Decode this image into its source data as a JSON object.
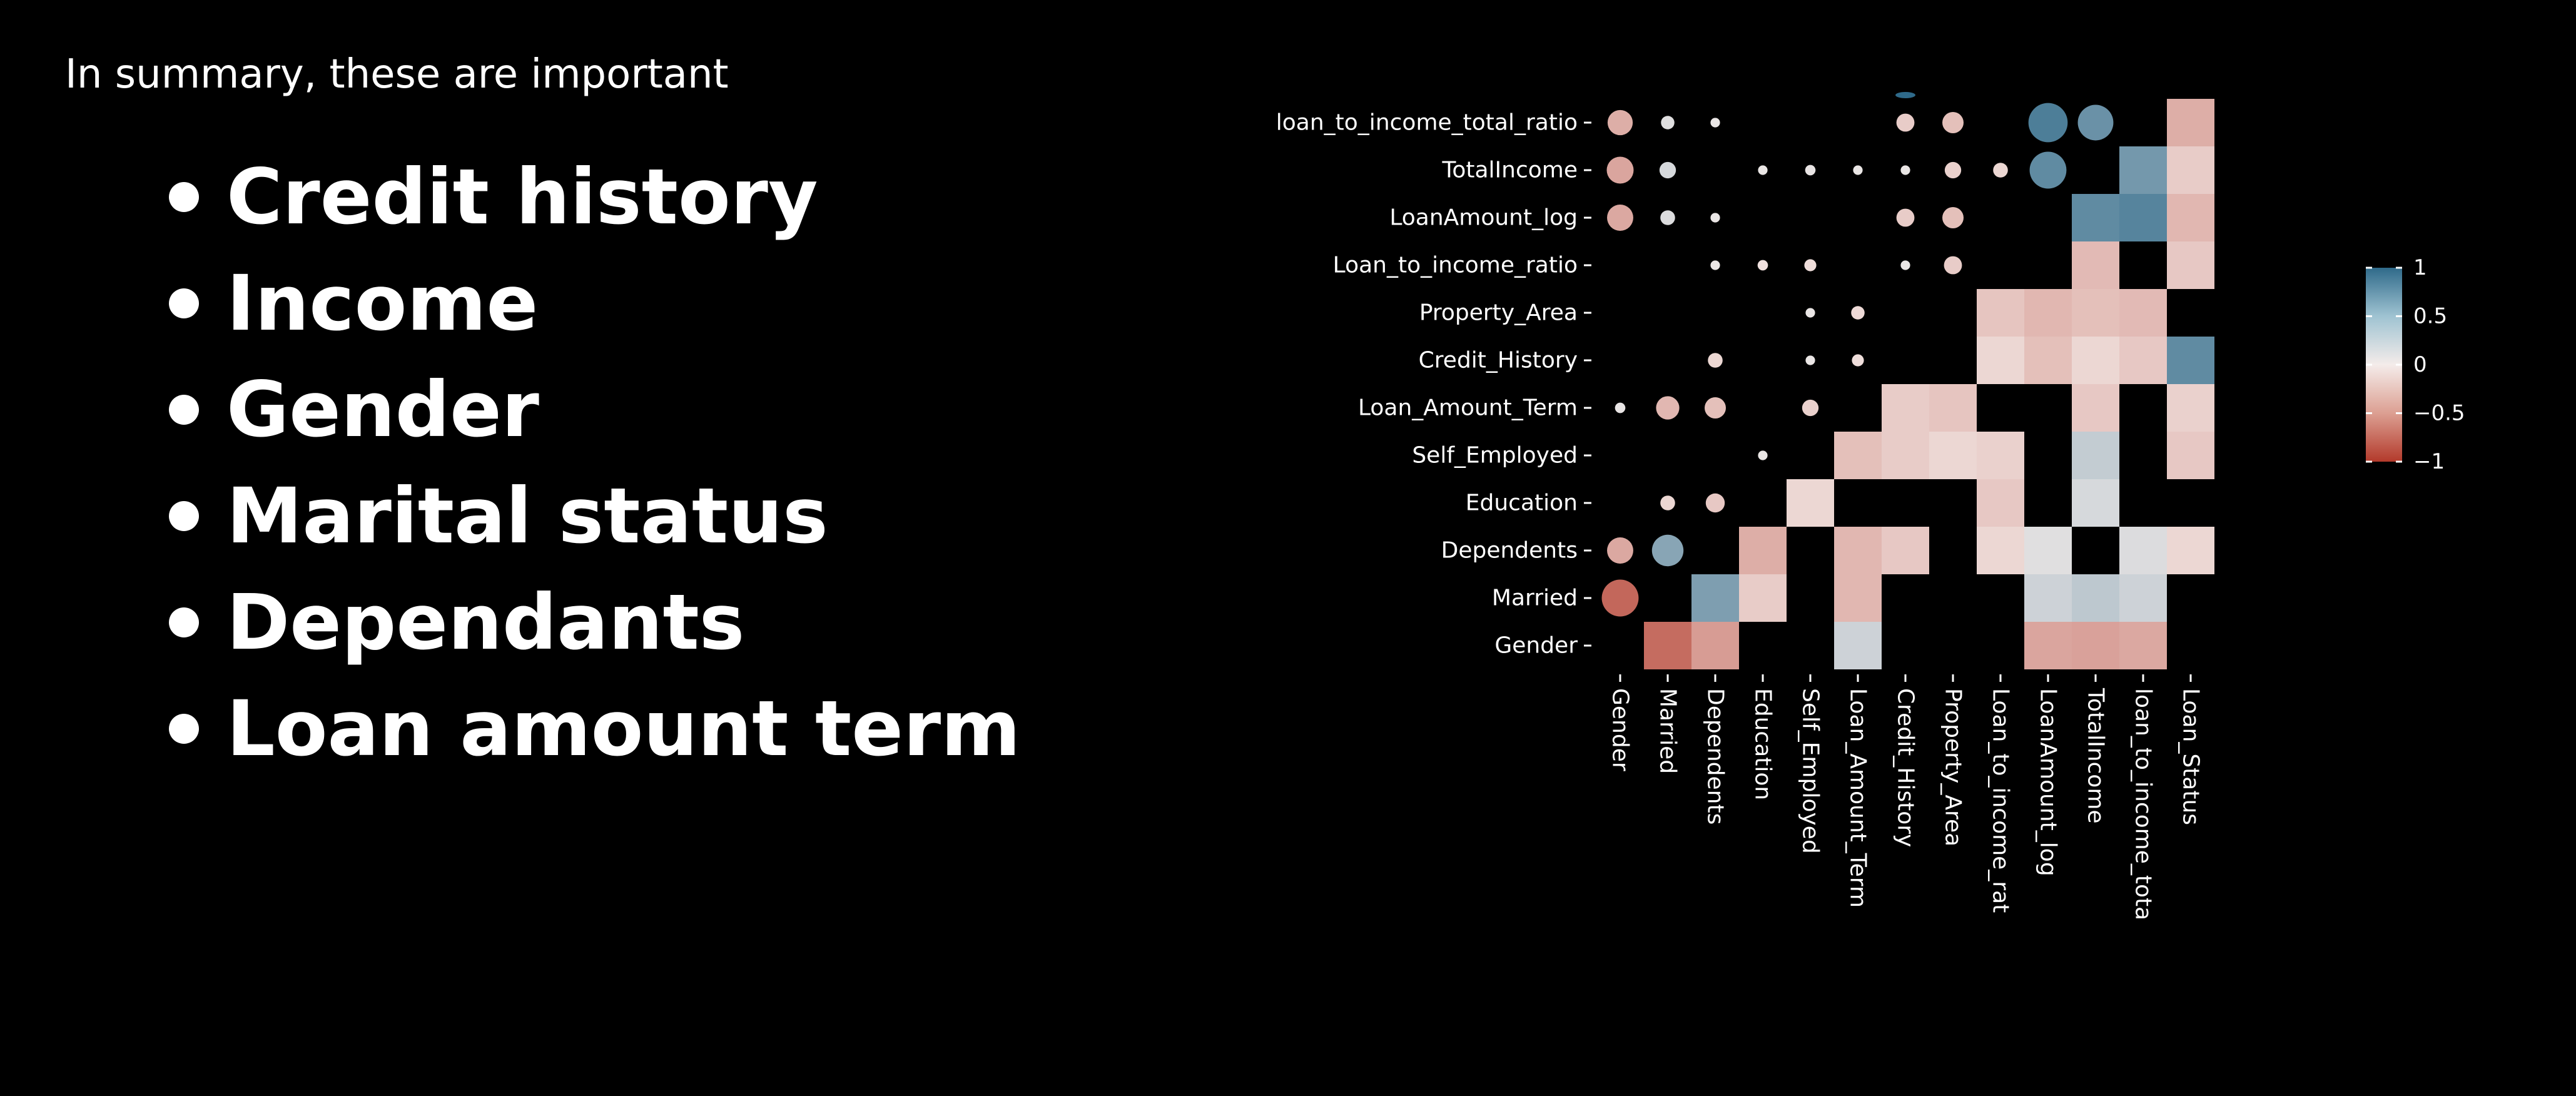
{
  "slide": {
    "title": "In summary, these are important",
    "bullets": [
      "Credit history",
      "Income",
      "Gender",
      "Marital status",
      "Dependants",
      "Loan amount term"
    ]
  },
  "correlation_plot": {
    "row_labels": [
      "loan_to_income_total_ratio",
      "TotalIncome",
      "LoanAmount_log",
      "Loan_to_income_ratio",
      "Property_Area",
      "Credit_History",
      "Loan_Amount_Term",
      "Self_Employed",
      "Education",
      "Dependents",
      "Married",
      "Gender"
    ],
    "col_labels": [
      "Gender",
      "Married",
      "Dependents",
      "Education",
      "Self_Employed",
      "Loan_Amount_Term",
      "Credit_History",
      "Property_Area",
      "Loan_to_income_rat",
      "LoanAmount_log",
      "TotalIncome",
      "loan_to_income_tota",
      "Loan_Status"
    ],
    "colorbar_ticks": [
      "1",
      "0.5",
      "0",
      "−0.5",
      "−1"
    ],
    "colors": {
      "positive": "#2f6a8a",
      "neutral": "#f4ecea",
      "negative": "#b33a2b",
      "background": "#000000"
    }
  }
}
